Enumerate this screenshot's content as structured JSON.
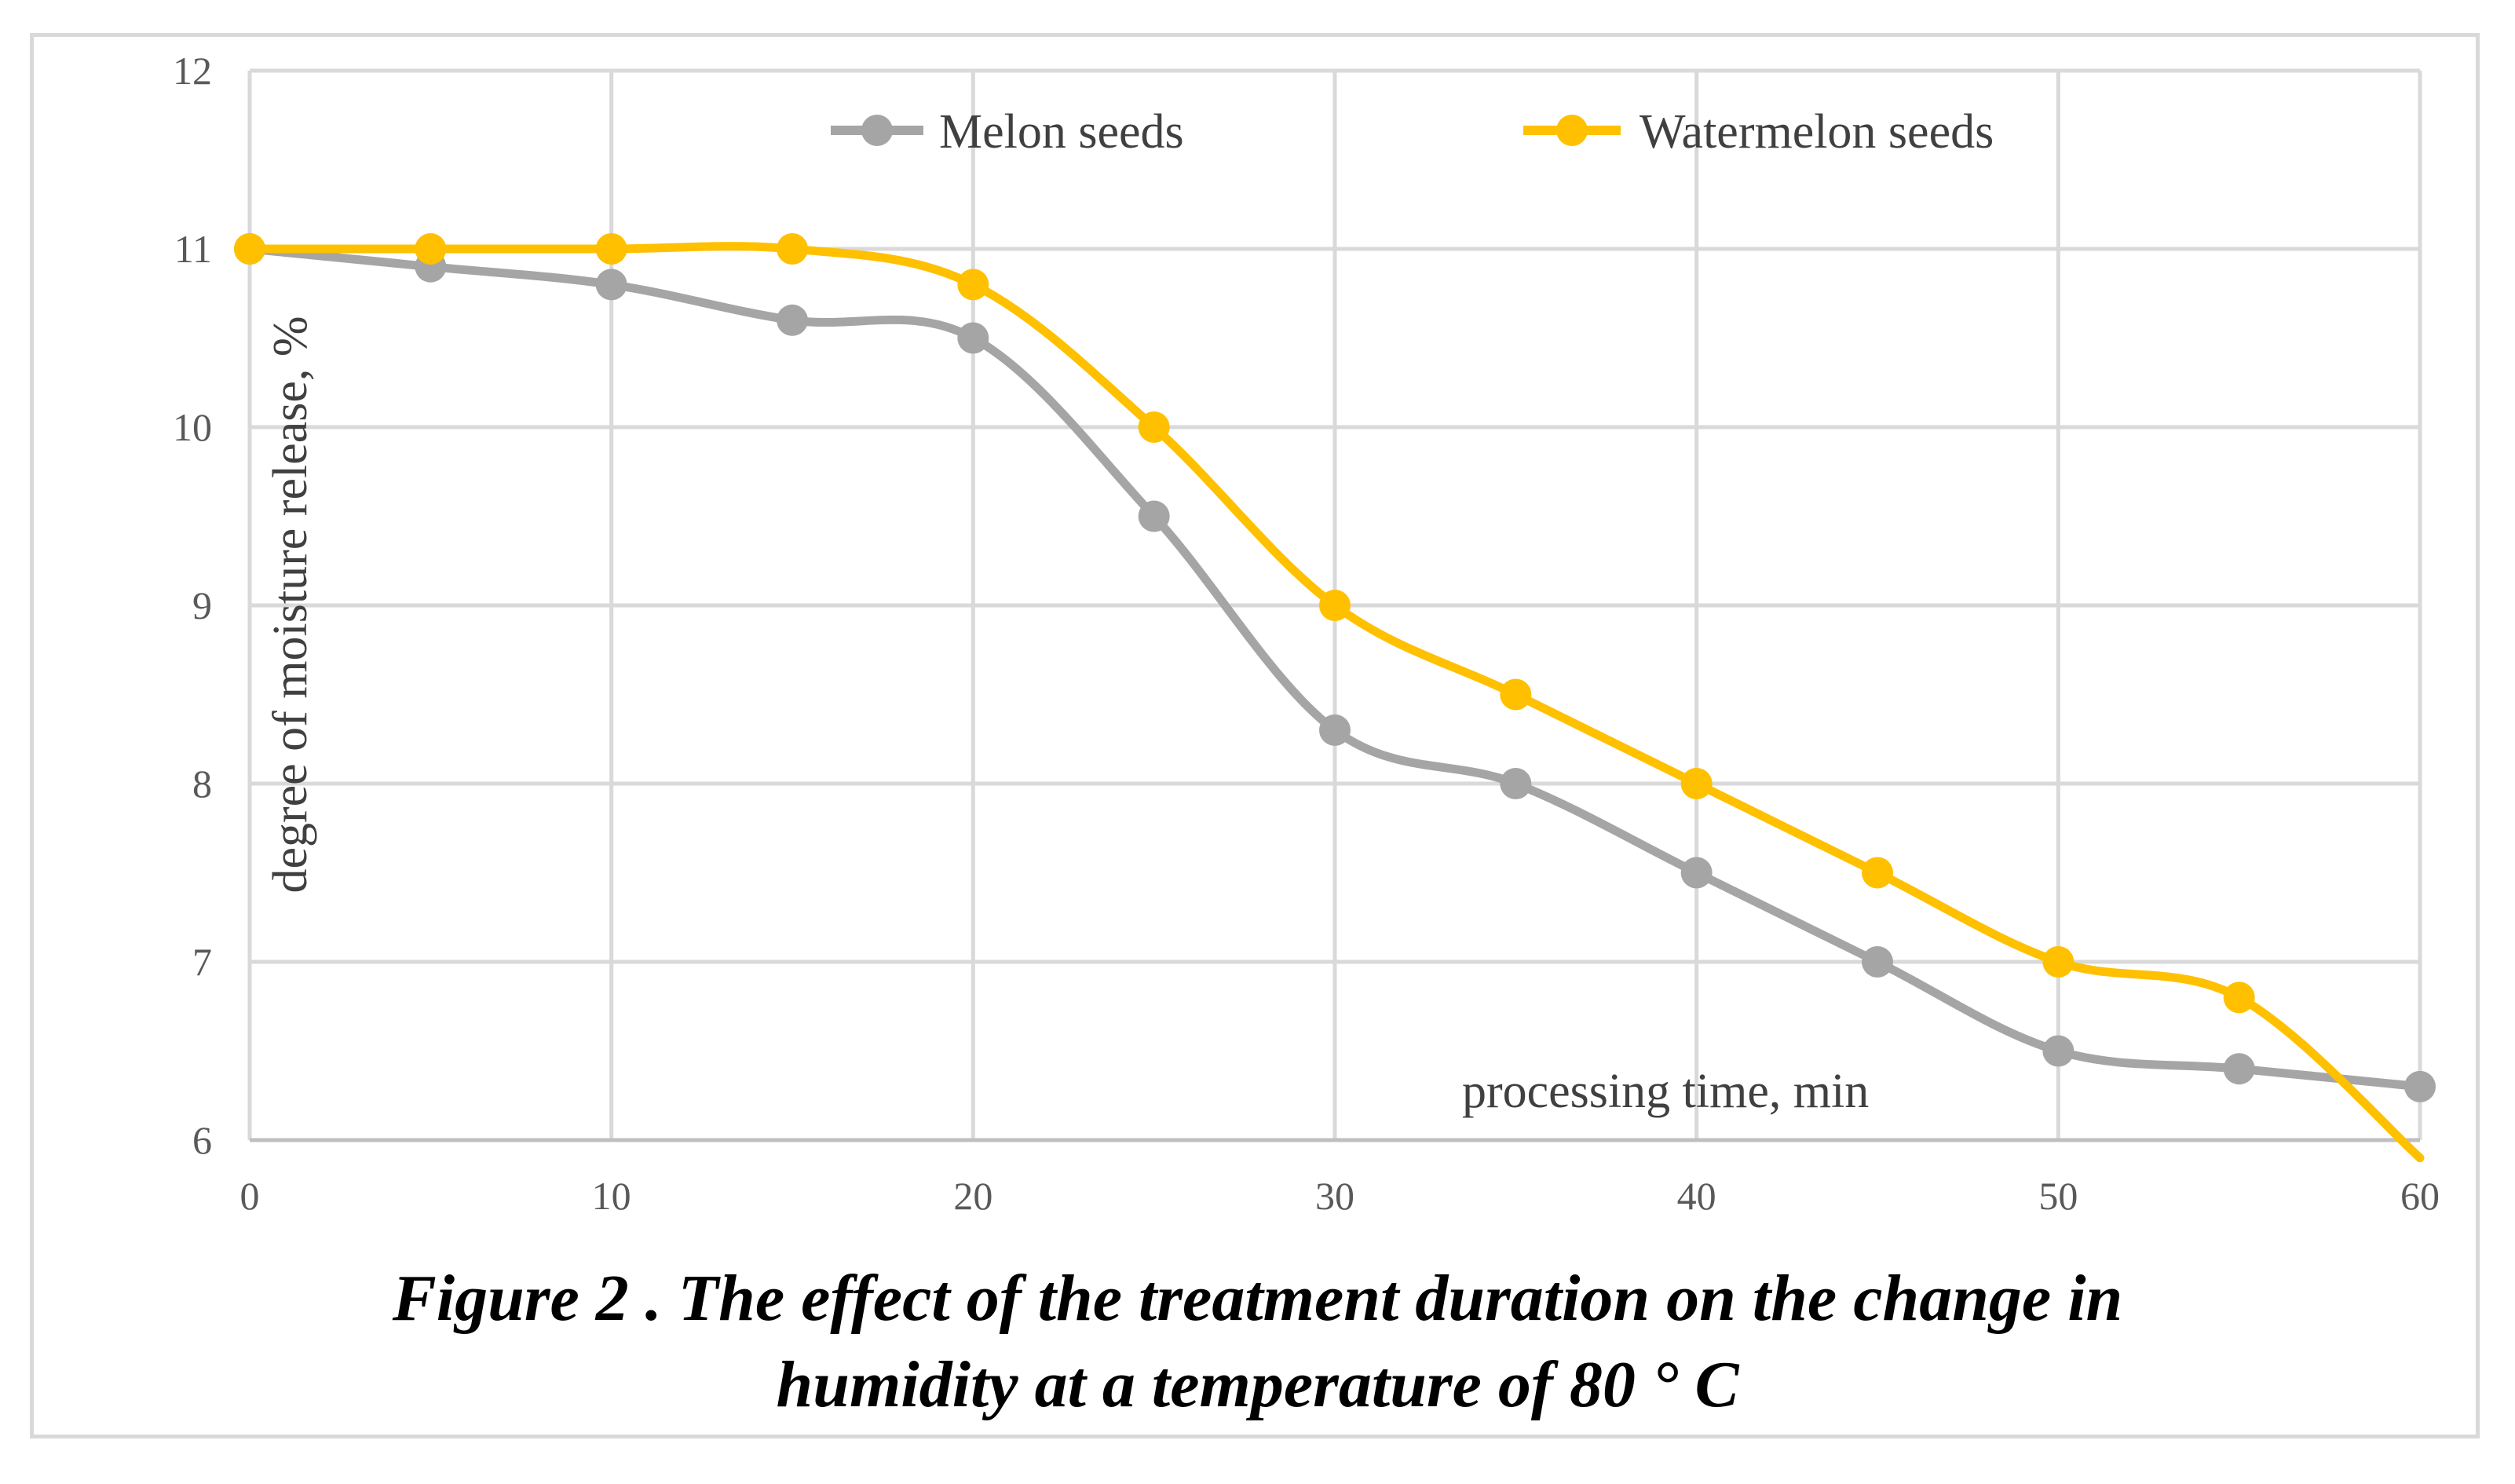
{
  "chart_data": {
    "type": "line",
    "caption_line1": "Figure 2 . The effect of the treatment duration on the change in",
    "caption_line2": "humidity at a temperature of 80 ° C",
    "xlabel": "processing time, min",
    "ylabel": "degree of moisture release,  %",
    "x": [
      0,
      5,
      10,
      15,
      20,
      25,
      30,
      35,
      40,
      45,
      50,
      55,
      60
    ],
    "xlim": [
      0,
      60
    ],
    "ylim": [
      6,
      12
    ],
    "x_ticks": [
      0,
      10,
      20,
      30,
      40,
      50,
      60
    ],
    "y_ticks": [
      6,
      7,
      8,
      9,
      10,
      11,
      12
    ],
    "grid": true,
    "legend_position": "top",
    "smoothed": true,
    "series": [
      {
        "name": "Melon seeds",
        "color": "#a5a5a5",
        "values": [
          11,
          10.9,
          10.8,
          10.6,
          10.5,
          9.5,
          8.3,
          8.0,
          7.5,
          7.0,
          6.5,
          6.4,
          6.3
        ]
      },
      {
        "name": "Watermelon seeds",
        "color": "#ffc000",
        "values": [
          11,
          11,
          11,
          11,
          10.8,
          10.0,
          9.0,
          8.5,
          8.0,
          7.5,
          7.0,
          6.8,
          5.9
        ]
      }
    ]
  }
}
